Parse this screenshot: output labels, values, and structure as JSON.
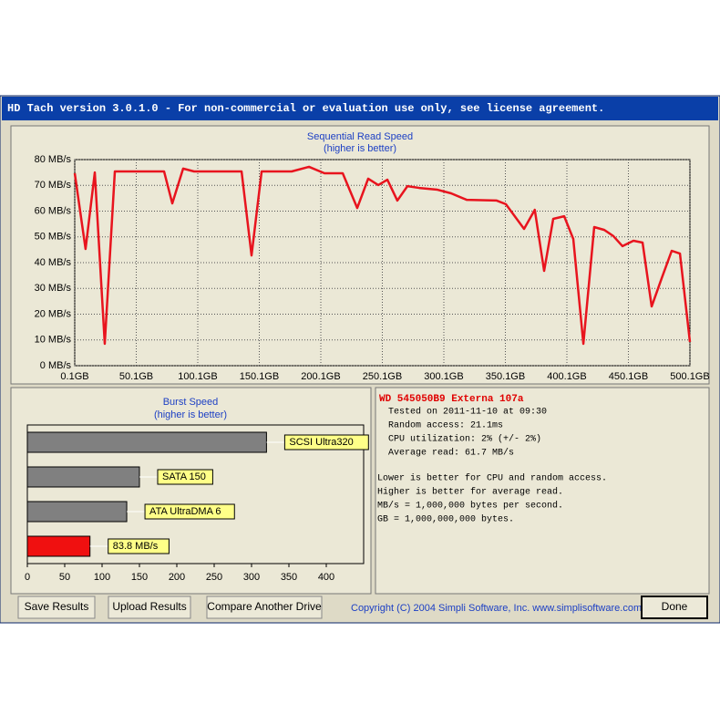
{
  "window": {
    "title": "HD Tach version 3.0.1.0  - For non-commercial or evaluation use only, see license agreement."
  },
  "chart_data": [
    {
      "type": "line",
      "title": "Sequential Read Speed",
      "subtitle": "(higher is better)",
      "x": [
        0.1,
        8.9,
        16.4,
        24.5,
        32.7,
        39.4,
        72.7,
        79.4,
        88.2,
        97.1,
        135.7,
        143.8,
        152,
        176.4,
        190.5,
        203.1,
        217.9,
        229.7,
        238.6,
        246.8,
        254.2,
        262.3,
        270.5,
        280.1,
        294.9,
        306,
        318.6,
        343,
        350.5,
        365.3,
        374,
        381.6,
        389,
        397.9,
        405.3,
        413.5,
        422.3,
        430.5,
        437.9,
        445.3,
        454.2,
        461.6,
        469,
        477.2,
        485.3,
        492,
        500.1
      ],
      "values": [
        74.7,
        45.3,
        75,
        8.5,
        75.4,
        75.4,
        75.4,
        63,
        76.5,
        75.4,
        75.4,
        42.8,
        75.4,
        75.4,
        77.2,
        74.7,
        74.7,
        61.2,
        72.6,
        70.1,
        72.2,
        64.1,
        69.7,
        69,
        68.3,
        66.9,
        64.4,
        64.1,
        62.7,
        53.1,
        60.5,
        36.8,
        57,
        58,
        49.2,
        8.5,
        53.8,
        52.7,
        50.3,
        46.4,
        48.5,
        47.8,
        23,
        34,
        44.6,
        43.5,
        9.2
      ],
      "color": "#e8141e",
      "xlim": [
        0.1,
        500.1
      ],
      "ylim": [
        0,
        80
      ],
      "xticks": [
        {
          "value": 0.1,
          "label": "0.1GB"
        },
        {
          "value": 50.1,
          "label": "50.1GB"
        },
        {
          "value": 100.1,
          "label": "100.1GB"
        },
        {
          "value": 150.1,
          "label": "150.1GB"
        },
        {
          "value": 200.1,
          "label": "200.1GB"
        },
        {
          "value": 250.1,
          "label": "250.1GB"
        },
        {
          "value": 300.1,
          "label": "300.1GB"
        },
        {
          "value": 350.1,
          "label": "350.1GB"
        },
        {
          "value": 400.1,
          "label": "400.1GB"
        },
        {
          "value": 450.1,
          "label": "450.1GB"
        },
        {
          "value": 500.1,
          "label": "500.1GB"
        }
      ],
      "yticks": [
        {
          "value": 0,
          "label": "0 MB/s"
        },
        {
          "value": 10,
          "label": "10 MB/s"
        },
        {
          "value": 20,
          "label": "20 MB/s"
        },
        {
          "value": 30,
          "label": "30 MB/s"
        },
        {
          "value": 40,
          "label": "40 MB/s"
        },
        {
          "value": 50,
          "label": "50 MB/s"
        },
        {
          "value": 60,
          "label": "60 MB/s"
        },
        {
          "value": 70,
          "label": "70 MB/s"
        },
        {
          "value": 80,
          "label": "80 MB/s"
        }
      ],
      "grid": true
    },
    {
      "type": "bar",
      "orientation": "horizontal",
      "title": "Burst Speed",
      "subtitle": "(higher is better)",
      "categories": [
        "SCSI Ultra320",
        "SATA 150",
        "ATA UltraDMA 6",
        null
      ],
      "values": [
        320,
        150,
        133,
        83.8
      ],
      "value_labels": [
        null,
        null,
        null,
        "83.8 MB/s"
      ],
      "colors": [
        "#808080",
        "#808080",
        "#808080",
        "#f01010"
      ],
      "xlim": [
        0,
        450
      ],
      "xticks": [
        0,
        50,
        100,
        150,
        200,
        250,
        300,
        350,
        400
      ]
    }
  ],
  "info": {
    "drive": "WD 545050B9 Externa 107a",
    "lines": [
      "Tested on 2011-11-10 at 09:30",
      "Random access: 21.1ms",
      "CPU utilization: 2% (+/- 2%)",
      "Average read: 61.7 MB/s"
    ],
    "notes": [
      "Lower is better for CPU and random access.",
      "Higher is better for average read.",
      "MB/s = 1,000,000 bytes per second.",
      "GB = 1,000,000,000 bytes."
    ]
  },
  "buttons": [
    "Save Results",
    "Upload Results",
    "Compare Another Drive",
    "Done"
  ],
  "copyright": "Copyright (C) 2004 Simpli Software, Inc. www.simplisoftware.com"
}
